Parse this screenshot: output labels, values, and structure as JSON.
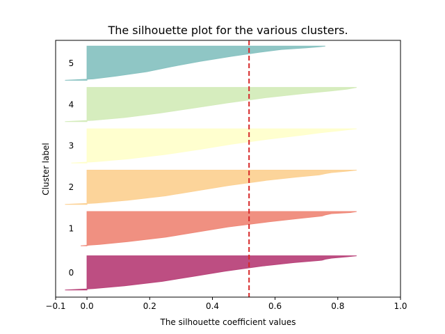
{
  "chart_data": {
    "type": "area",
    "title": "The silhouette plot for the various clusters.",
    "xlabel": "The silhouette coefficient values",
    "ylabel": "Cluster label",
    "xlim": [
      -0.1,
      1.0
    ],
    "xticks": [
      -0.1,
      0.0,
      0.2,
      0.4,
      0.6,
      0.8,
      1.0
    ],
    "xtick_labels": [
      "−0.1",
      "0.0",
      "0.2",
      "0.4",
      "0.6",
      "0.8",
      "1.0"
    ],
    "ylim": [
      0,
      360
    ],
    "grid": false,
    "average_silhouette": 0.517,
    "average_line_color": "#d62728",
    "clusters": [
      {
        "label": "0",
        "color": "#b9457b",
        "y_start": 10,
        "profile": [
          [
            0,
            -0.07
          ],
          [
            0.04,
            0.02
          ],
          [
            0.12,
            0.12
          ],
          [
            0.25,
            0.24
          ],
          [
            0.4,
            0.34
          ],
          [
            0.55,
            0.44
          ],
          [
            0.7,
            0.56
          ],
          [
            0.8,
            0.66
          ],
          [
            0.86,
            0.74
          ],
          [
            0.87,
            0.75
          ],
          [
            0.9,
            0.76
          ],
          [
            0.93,
            0.78
          ],
          [
            0.97,
            0.83
          ],
          [
            1.0,
            0.86
          ]
        ]
      },
      {
        "label": "1",
        "color": "#ef8a7a",
        "y_start": 72,
        "profile": [
          [
            0,
            -0.02
          ],
          [
            0.04,
            0.04
          ],
          [
            0.12,
            0.13
          ],
          [
            0.25,
            0.25
          ],
          [
            0.4,
            0.35
          ],
          [
            0.55,
            0.45
          ],
          [
            0.7,
            0.58
          ],
          [
            0.8,
            0.68
          ],
          [
            0.86,
            0.74
          ],
          [
            0.87,
            0.75
          ],
          [
            0.9,
            0.76
          ],
          [
            0.94,
            0.78
          ],
          [
            0.97,
            0.84
          ],
          [
            1.0,
            0.86
          ]
        ]
      },
      {
        "label": "2",
        "color": "#fcd295",
        "y_start": 130,
        "profile": [
          [
            0,
            -0.07
          ],
          [
            0.04,
            0.03
          ],
          [
            0.12,
            0.13
          ],
          [
            0.25,
            0.25
          ],
          [
            0.4,
            0.35
          ],
          [
            0.55,
            0.45
          ],
          [
            0.7,
            0.57
          ],
          [
            0.8,
            0.67
          ],
          [
            0.86,
            0.74
          ],
          [
            0.88,
            0.75
          ],
          [
            0.9,
            0.76
          ],
          [
            0.93,
            0.78
          ],
          [
            0.97,
            0.83
          ],
          [
            1.0,
            0.86
          ]
        ]
      },
      {
        "label": "3",
        "color": "#ffffcc",
        "y_start": 188,
        "profile": [
          [
            0,
            -0.05
          ],
          [
            0.04,
            0.03
          ],
          [
            0.12,
            0.13
          ],
          [
            0.25,
            0.25
          ],
          [
            0.4,
            0.36
          ],
          [
            0.55,
            0.46
          ],
          [
            0.7,
            0.58
          ],
          [
            0.82,
            0.69
          ],
          [
            0.88,
            0.74
          ],
          [
            0.9,
            0.76
          ],
          [
            0.94,
            0.8
          ],
          [
            1.0,
            0.86
          ]
        ]
      },
      {
        "label": "4",
        "color": "#d4ecbb",
        "y_start": 246,
        "profile": [
          [
            0,
            -0.07
          ],
          [
            0.04,
            0.02
          ],
          [
            0.12,
            0.12
          ],
          [
            0.25,
            0.23
          ],
          [
            0.4,
            0.34
          ],
          [
            0.55,
            0.45
          ],
          [
            0.7,
            0.57
          ],
          [
            0.82,
            0.69
          ],
          [
            0.9,
            0.78
          ],
          [
            0.95,
            0.83
          ],
          [
            1.0,
            0.86
          ]
        ]
      },
      {
        "label": "5",
        "color": "#89c3c2",
        "y_start": 304,
        "profile": [
          [
            0,
            -0.07
          ],
          [
            0.04,
            0.02
          ],
          [
            0.12,
            0.09
          ],
          [
            0.25,
            0.19
          ],
          [
            0.4,
            0.27
          ],
          [
            0.55,
            0.36
          ],
          [
            0.7,
            0.46
          ],
          [
            0.82,
            0.55
          ],
          [
            0.9,
            0.62
          ],
          [
            0.95,
            0.7
          ],
          [
            0.98,
            0.74
          ],
          [
            1.0,
            0.76
          ]
        ]
      }
    ]
  }
}
